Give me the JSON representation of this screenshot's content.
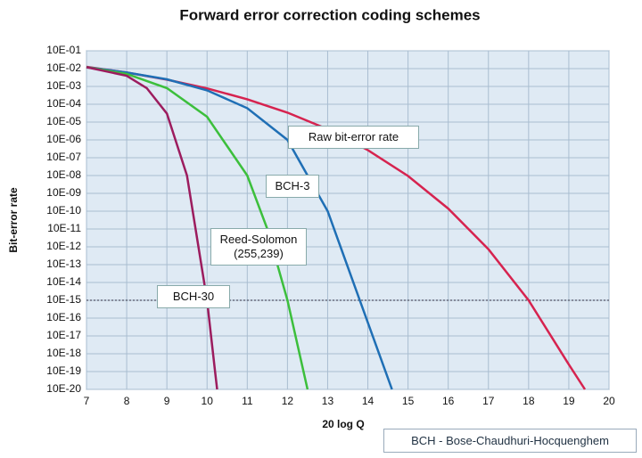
{
  "chart_data": {
    "type": "line",
    "title": "Forward error correction coding schemes",
    "xlabel": "20 log Q",
    "ylabel": "Bit-error rate",
    "log_y": true,
    "grid": true,
    "note": "BCH - Bose-Chaudhuri-Hocquenghem",
    "xlim": [
      7,
      20
    ],
    "xticks": [
      7,
      8,
      9,
      10,
      11,
      12,
      13,
      14,
      15,
      16,
      17,
      18,
      19,
      20
    ],
    "ylim": [
      1e-20,
      0.1
    ],
    "yticks": [
      {
        "value": 0.1,
        "label": "10E-01"
      },
      {
        "value": 0.01,
        "label": "10E-02"
      },
      {
        "value": 0.001,
        "label": "10E-03"
      },
      {
        "value": 0.0001,
        "label": "10E-04"
      },
      {
        "value": 1e-05,
        "label": "10E-05"
      },
      {
        "value": 1e-06,
        "label": "10E-06"
      },
      {
        "value": 1e-07,
        "label": "10E-07"
      },
      {
        "value": 1e-08,
        "label": "10E-08"
      },
      {
        "value": 1e-09,
        "label": "10E-09"
      },
      {
        "value": 1e-10,
        "label": "10E-10"
      },
      {
        "value": 1e-11,
        "label": "10E-11"
      },
      {
        "value": 1e-12,
        "label": "10E-12"
      },
      {
        "value": 1e-13,
        "label": "10E-13"
      },
      {
        "value": 1e-14,
        "label": "10E-14"
      },
      {
        "value": 1e-15,
        "label": "10E-15"
      },
      {
        "value": 1e-16,
        "label": "10E-16"
      },
      {
        "value": 1e-17,
        "label": "10E-17"
      },
      {
        "value": 1e-18,
        "label": "10E-18"
      },
      {
        "value": 1e-19,
        "label": "10E-19"
      },
      {
        "value": 1e-20,
        "label": "10E-20"
      }
    ],
    "reference_line": 1e-15,
    "series": [
      {
        "name": "Raw bit-error rate",
        "color": "#d6234f",
        "x": [
          7,
          8,
          9,
          10,
          11,
          12,
          13,
          14,
          15,
          16,
          17,
          18,
          19,
          19.4
        ],
        "values": [
          0.0126,
          0.006,
          0.0024,
          0.00078,
          0.00019,
          3.4e-05,
          4e-06,
          2.7e-07,
          9.4e-09,
          1.4e-10,
          7.3e-13,
          1e-15,
          2.5e-19,
          1e-20
        ]
      },
      {
        "name": "BCH-3",
        "color": "#1f6fb5",
        "x": [
          7,
          8,
          9,
          10,
          11,
          12,
          13,
          13.8,
          14.6
        ],
        "values": [
          0.012,
          0.006,
          0.0025,
          0.0006,
          6e-05,
          1e-06,
          1e-10,
          1e-15,
          1e-20
        ]
      },
      {
        "name": "Reed-Solomon (255,239)",
        "color": "#3cbf3c",
        "x": [
          7,
          8,
          9,
          10,
          11,
          11.5,
          12,
          12.5
        ],
        "values": [
          0.012,
          0.005,
          0.0008,
          2e-05,
          1e-08,
          1e-11,
          1e-15,
          1e-20
        ]
      },
      {
        "name": "BCH-30",
        "color": "#9c1c5e",
        "x": [
          7,
          8,
          8.5,
          9,
          9.5,
          10,
          10.2,
          10.25
        ],
        "values": [
          0.012,
          0.004,
          0.0008,
          3e-05,
          1e-08,
          1e-15,
          1e-19,
          1e-20
        ]
      }
    ]
  }
}
